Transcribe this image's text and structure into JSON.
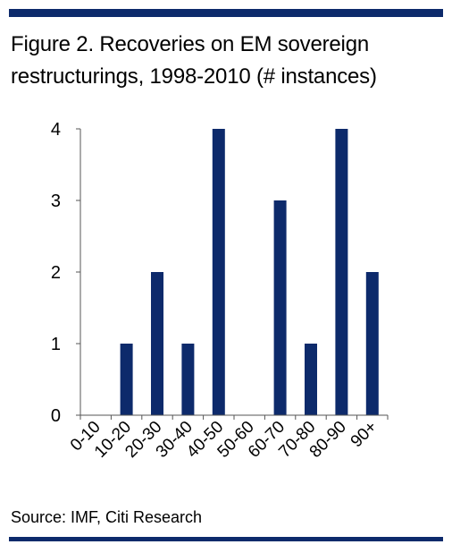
{
  "colors": {
    "accent": "#0d2a6b",
    "bar": "#0d2a6b",
    "axis": "#555555"
  },
  "header": {
    "title": "Figure 2. Recoveries on EM sovereign restructurings, 1998-2010 (# instances)"
  },
  "footer": {
    "source": "Source: IMF, Citi Research"
  },
  "chart_data": {
    "type": "bar",
    "categories": [
      "0-10",
      "10-20",
      "20-30",
      "30-40",
      "40-50",
      "50-60",
      "60-70",
      "70-80",
      "80-90",
      "90+"
    ],
    "values": [
      0,
      1,
      2,
      1,
      4,
      0,
      3,
      1,
      4,
      2
    ],
    "ylim": [
      0,
      4
    ],
    "yticks": [
      "0",
      "1",
      "2",
      "3",
      "4"
    ],
    "xlabel": "",
    "ylabel": "",
    "grid": false
  }
}
